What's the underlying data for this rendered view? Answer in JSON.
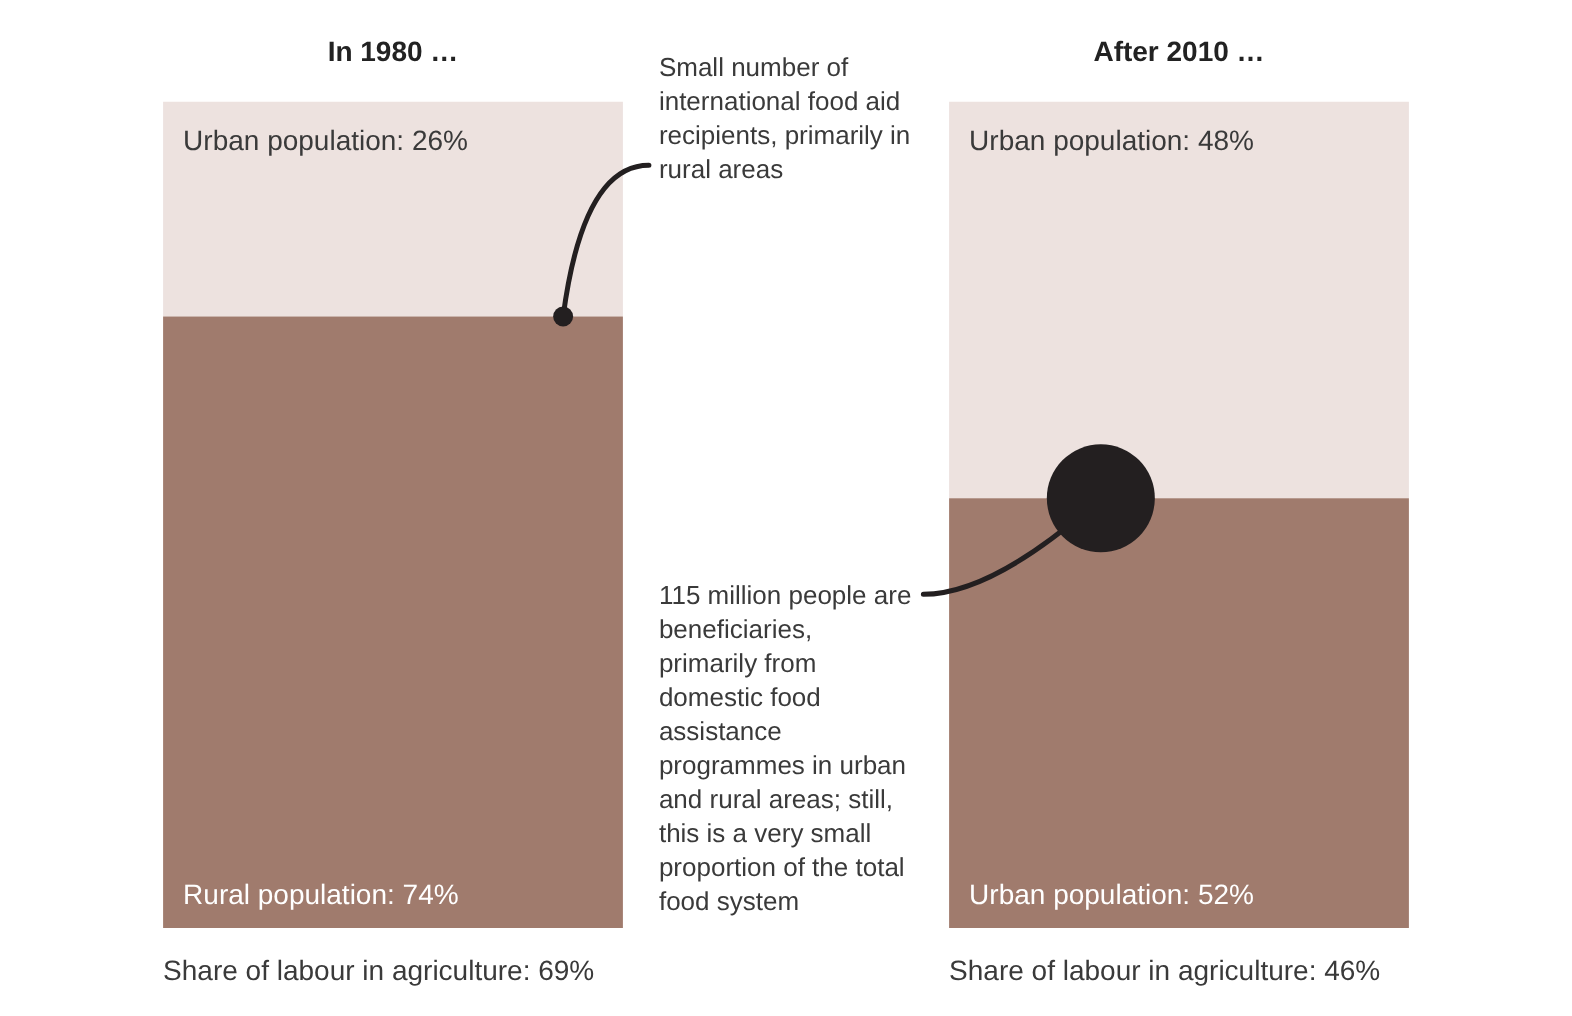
{
  "chart_data": {
    "type": "bar",
    "stacked": true,
    "categories": [
      "In 1980 …",
      "After 2010 …"
    ],
    "ylim": [
      0,
      100
    ],
    "legend": false,
    "series": [
      {
        "color": "#a07b6d",
        "values": [
          74,
          52
        ],
        "value_labels": [
          "Rural population: 74%",
          "Urban population: 52%"
        ]
      },
      {
        "color": "#ede2df",
        "values": [
          26,
          48
        ],
        "value_labels": [
          "Urban population: 26%",
          "Urban population: 48%"
        ]
      }
    ],
    "annotations": [
      "Small number of international food aid recipients, primarily in rural areas",
      "115 million people are beneficiaries, primarily from domestic food assistance programmes in urban and rural areas; still, this is a very small proportion of the total food system",
      "Share of labour in agriculture: 69%",
      "Share of labour in agriculture: 46%"
    ]
  }
}
